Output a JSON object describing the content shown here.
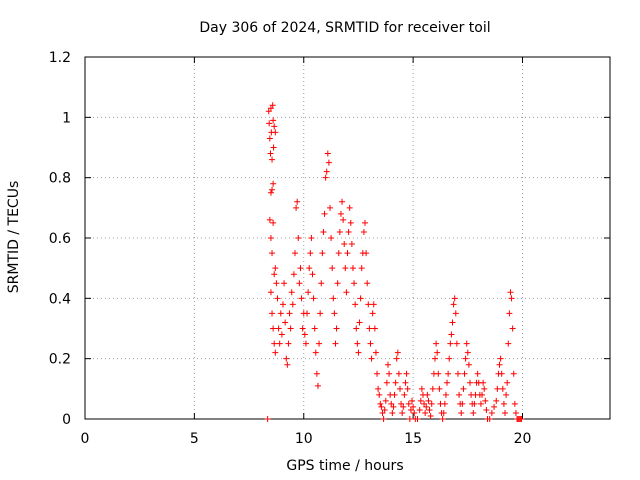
{
  "chart_data": {
    "type": "scatter",
    "title": "Day 306 of 2024, SRMTID for receiver toil",
    "xlabel": "GPS time / hours",
    "ylabel": "SRMTID / TECUs",
    "xlim": [
      0,
      24
    ],
    "ylim": [
      0,
      1.2
    ],
    "x_ticks": [
      0,
      5,
      10,
      15,
      20
    ],
    "y_ticks": [
      0,
      0.2,
      0.4,
      0.6,
      0.8,
      1.0,
      1.2
    ],
    "x_tick_labels": [
      "0",
      "5",
      "10",
      "15",
      "20"
    ],
    "y_tick_labels": [
      "0",
      "0.2",
      "0.4",
      "0.6",
      "0.8",
      "1",
      "1.2"
    ],
    "grid": true,
    "marker": "+",
    "color": "#ff0000",
    "series": [
      {
        "points": [
          [
            8.35,
            0
          ],
          [
            8.4,
            1.02
          ],
          [
            8.42,
            0.98
          ],
          [
            8.45,
            0.93
          ],
          [
            8.48,
            0.88
          ],
          [
            8.5,
            1.03
          ],
          [
            8.52,
            0.95
          ],
          [
            8.55,
            0.86
          ],
          [
            8.58,
            1.04
          ],
          [
            8.6,
            0.99
          ],
          [
            8.62,
            0.9
          ],
          [
            8.65,
            0.97
          ],
          [
            8.7,
            0.95
          ],
          [
            8.5,
            0.75
          ],
          [
            8.55,
            0.76
          ],
          [
            8.6,
            0.78
          ],
          [
            8.45,
            0.66
          ],
          [
            8.5,
            0.6
          ],
          [
            8.55,
            0.55
          ],
          [
            8.6,
            0.65
          ],
          [
            8.65,
            0.48
          ],
          [
            8.7,
            0.5
          ],
          [
            8.75,
            0.45
          ],
          [
            8.5,
            0.42
          ],
          [
            8.55,
            0.35
          ],
          [
            8.6,
            0.3
          ],
          [
            8.65,
            0.25
          ],
          [
            8.7,
            0.22
          ],
          [
            8.8,
            0.4
          ],
          [
            8.85,
            0.3
          ],
          [
            8.9,
            0.25
          ],
          [
            8.95,
            0.35
          ],
          [
            9.0,
            0.28
          ],
          [
            9.05,
            0.38
          ],
          [
            9.1,
            0.45
          ],
          [
            9.15,
            0.32
          ],
          [
            9.2,
            0.2
          ],
          [
            9.25,
            0.18
          ],
          [
            9.3,
            0.25
          ],
          [
            9.35,
            0.35
          ],
          [
            9.4,
            0.3
          ],
          [
            9.45,
            0.42
          ],
          [
            9.5,
            0.38
          ],
          [
            9.55,
            0.48
          ],
          [
            9.6,
            0.55
          ],
          [
            9.65,
            0.7
          ],
          [
            9.7,
            0.72
          ],
          [
            9.75,
            0.6
          ],
          [
            9.8,
            0.45
          ],
          [
            9.85,
            0.5
          ],
          [
            9.9,
            0.4
          ],
          [
            9.95,
            0.3
          ],
          [
            10.0,
            0.35
          ],
          [
            10.05,
            0.28
          ],
          [
            10.1,
            0.25
          ],
          [
            10.15,
            0.35
          ],
          [
            10.2,
            0.42
          ],
          [
            10.25,
            0.5
          ],
          [
            10.3,
            0.55
          ],
          [
            10.35,
            0.6
          ],
          [
            10.4,
            0.48
          ],
          [
            10.45,
            0.4
          ],
          [
            10.5,
            0.3
          ],
          [
            10.55,
            0.22
          ],
          [
            10.6,
            0.15
          ],
          [
            10.65,
            0.11
          ],
          [
            10.7,
            0.25
          ],
          [
            10.75,
            0.35
          ],
          [
            10.8,
            0.45
          ],
          [
            10.85,
            0.55
          ],
          [
            10.9,
            0.62
          ],
          [
            10.95,
            0.68
          ],
          [
            11.0,
            0.8
          ],
          [
            11.05,
            0.82
          ],
          [
            11.1,
            0.88
          ],
          [
            11.15,
            0.85
          ],
          [
            11.2,
            0.7
          ],
          [
            11.25,
            0.6
          ],
          [
            11.3,
            0.5
          ],
          [
            11.35,
            0.4
          ],
          [
            11.4,
            0.35
          ],
          [
            11.45,
            0.25
          ],
          [
            11.5,
            0.3
          ],
          [
            11.55,
            0.45
          ],
          [
            11.6,
            0.55
          ],
          [
            11.65,
            0.62
          ],
          [
            11.7,
            0.68
          ],
          [
            11.75,
            0.72
          ],
          [
            11.8,
            0.66
          ],
          [
            11.85,
            0.58
          ],
          [
            11.9,
            0.5
          ],
          [
            11.95,
            0.42
          ],
          [
            12.0,
            0.55
          ],
          [
            12.05,
            0.62
          ],
          [
            12.1,
            0.7
          ],
          [
            12.15,
            0.65
          ],
          [
            12.2,
            0.58
          ],
          [
            12.25,
            0.5
          ],
          [
            12.3,
            0.45
          ],
          [
            12.35,
            0.38
          ],
          [
            12.4,
            0.3
          ],
          [
            12.45,
            0.25
          ],
          [
            12.5,
            0.22
          ],
          [
            12.55,
            0.32
          ],
          [
            12.6,
            0.4
          ],
          [
            12.65,
            0.5
          ],
          [
            12.7,
            0.55
          ],
          [
            12.75,
            0.62
          ],
          [
            12.8,
            0.65
          ],
          [
            12.85,
            0.55
          ],
          [
            12.9,
            0.45
          ],
          [
            12.95,
            0.38
          ],
          [
            13.0,
            0.3
          ],
          [
            13.05,
            0.25
          ],
          [
            13.1,
            0.2
          ],
          [
            13.15,
            0.35
          ],
          [
            13.2,
            0.38
          ],
          [
            13.25,
            0.3
          ],
          [
            13.3,
            0.22
          ],
          [
            13.35,
            0.15
          ],
          [
            13.4,
            0.1
          ],
          [
            13.45,
            0.08
          ],
          [
            13.5,
            0.05
          ],
          [
            13.55,
            0.04
          ],
          [
            13.6,
            0.02
          ],
          [
            13.65,
            0
          ],
          [
            13.7,
            0.03
          ],
          [
            13.75,
            0.06
          ],
          [
            13.8,
            0.12
          ],
          [
            13.85,
            0.18
          ],
          [
            13.9,
            0.15
          ],
          [
            13.95,
            0.08
          ],
          [
            14.0,
            0.05
          ],
          [
            14.05,
            0.02
          ],
          [
            14.1,
            0.04
          ],
          [
            14.15,
            0.08
          ],
          [
            14.2,
            0.12
          ],
          [
            14.25,
            0.2
          ],
          [
            14.3,
            0.22
          ],
          [
            14.35,
            0.15
          ],
          [
            14.4,
            0.1
          ],
          [
            14.45,
            0.05
          ],
          [
            14.5,
            0.02
          ],
          [
            14.55,
            0.04
          ],
          [
            14.6,
            0.08
          ],
          [
            14.65,
            0.12
          ],
          [
            14.7,
            0.15
          ],
          [
            14.75,
            0.1
          ],
          [
            14.8,
            0.05
          ],
          [
            14.85,
            0
          ],
          [
            14.9,
            0.03
          ],
          [
            14.95,
            0.06
          ],
          [
            15.0,
            0.04
          ],
          [
            15.05,
            0.02
          ],
          [
            15.1,
            0
          ],
          [
            15.2,
            0
          ],
          [
            15.3,
            0.03
          ],
          [
            15.35,
            0.06
          ],
          [
            15.4,
            0.1
          ],
          [
            15.45,
            0.08
          ],
          [
            15.5,
            0.05
          ],
          [
            15.55,
            0.02
          ],
          [
            15.6,
            0.04
          ],
          [
            15.65,
            0.08
          ],
          [
            15.7,
            0.06
          ],
          [
            15.75,
            0.03
          ],
          [
            15.8,
            0.01
          ],
          [
            15.85,
            0.05
          ],
          [
            15.9,
            0.1
          ],
          [
            15.95,
            0.15
          ],
          [
            16.0,
            0.2
          ],
          [
            16.05,
            0.25
          ],
          [
            16.1,
            0.22
          ],
          [
            16.15,
            0.15
          ],
          [
            16.2,
            0.1
          ],
          [
            16.25,
            0.05
          ],
          [
            16.3,
            0.02
          ],
          [
            16.35,
            0
          ],
          [
            16.4,
            0.02
          ],
          [
            16.45,
            0.05
          ],
          [
            16.5,
            0.08
          ],
          [
            16.55,
            0.12
          ],
          [
            16.6,
            0.15
          ],
          [
            16.65,
            0.2
          ],
          [
            16.7,
            0.25
          ],
          [
            16.75,
            0.28
          ],
          [
            16.8,
            0.32
          ],
          [
            16.85,
            0.38
          ],
          [
            16.9,
            0.4
          ],
          [
            16.95,
            0.35
          ],
          [
            17.0,
            0.25
          ],
          [
            17.05,
            0.15
          ],
          [
            17.1,
            0.08
          ],
          [
            17.15,
            0.05
          ],
          [
            17.2,
            0.02
          ],
          [
            17.25,
            0.05
          ],
          [
            17.3,
            0.1
          ],
          [
            17.35,
            0.15
          ],
          [
            17.4,
            0.2
          ],
          [
            17.45,
            0.25
          ],
          [
            17.5,
            0.22
          ],
          [
            17.55,
            0.18
          ],
          [
            17.6,
            0.12
          ],
          [
            17.65,
            0.08
          ],
          [
            17.7,
            0.05
          ],
          [
            17.75,
            0.02
          ],
          [
            17.8,
            0.05
          ],
          [
            17.85,
            0.08
          ],
          [
            17.9,
            0.12
          ],
          [
            17.95,
            0.15
          ],
          [
            18.0,
            0.12
          ],
          [
            18.05,
            0.08
          ],
          [
            18.1,
            0.05
          ],
          [
            18.15,
            0.08
          ],
          [
            18.2,
            0.12
          ],
          [
            18.25,
            0.1
          ],
          [
            18.3,
            0.06
          ],
          [
            18.35,
            0.03
          ],
          [
            18.4,
            0
          ],
          [
            18.5,
            0
          ],
          [
            18.6,
            0.02
          ],
          [
            18.7,
            0.04
          ],
          [
            18.8,
            0.06
          ],
          [
            18.85,
            0.1
          ],
          [
            18.9,
            0.15
          ],
          [
            18.95,
            0.18
          ],
          [
            19.0,
            0.2
          ],
          [
            19.05,
            0.15
          ],
          [
            19.1,
            0.1
          ],
          [
            19.15,
            0.05
          ],
          [
            19.2,
            0.02
          ],
          [
            19.25,
            0.08
          ],
          [
            19.3,
            0.12
          ],
          [
            19.35,
            0.25
          ],
          [
            19.4,
            0.35
          ],
          [
            19.45,
            0.42
          ],
          [
            19.5,
            0.4
          ],
          [
            19.55,
            0.3
          ],
          [
            19.6,
            0.15
          ],
          [
            19.65,
            0.05
          ],
          [
            19.7,
            0.02
          ],
          [
            19.75,
            0
          ],
          [
            19.8,
            0
          ],
          [
            19.85,
            0
          ],
          [
            19.9,
            0
          ],
          [
            19.95,
            0
          ]
        ]
      }
    ]
  }
}
